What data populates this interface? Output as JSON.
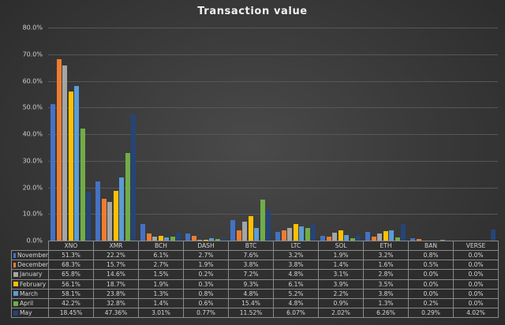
{
  "chart_data": {
    "type": "bar",
    "title": "Transaction value",
    "xlabel": "",
    "ylabel": "",
    "ylim": [
      0,
      80
    ],
    "y_ticks": [
      "0.0%",
      "10.0%",
      "20.0%",
      "30.0%",
      "40.0%",
      "50.0%",
      "60.0%",
      "70.0%",
      "80.0%"
    ],
    "grid": true,
    "legend_position": "data-table",
    "categories": [
      "XNO",
      "XMR",
      "BCH",
      "DASH",
      "BTC",
      "LTC",
      "SOL",
      "ETH",
      "BAN",
      "VERSE"
    ],
    "series": [
      {
        "name": "November",
        "color": "#4472c4",
        "values": [
          51.3,
          22.2,
          6.1,
          2.7,
          7.6,
          3.2,
          1.9,
          3.2,
          0.8,
          0.0
        ],
        "labels": [
          "51.3%",
          "22.2%",
          "6.1%",
          "2.7%",
          "7.6%",
          "3.2%",
          "1.9%",
          "3.2%",
          "0.8%",
          "0.0%"
        ]
      },
      {
        "name": "December",
        "color": "#ed7d31",
        "values": [
          68.3,
          15.7,
          2.7,
          1.9,
          3.8,
          3.8,
          1.4,
          1.6,
          0.5,
          0.0
        ],
        "labels": [
          "68.3%",
          "15.7%",
          "2.7%",
          "1.9%",
          "3.8%",
          "3.8%",
          "1.4%",
          "1.6%",
          "0.5%",
          "0.0%"
        ]
      },
      {
        "name": "January",
        "color": "#a5a5a5",
        "values": [
          65.8,
          14.6,
          1.5,
          0.2,
          7.2,
          4.8,
          3.1,
          2.8,
          0.0,
          0.0
        ],
        "labels": [
          "65.8%",
          "14.6%",
          "1.5%",
          "0.2%",
          "7.2%",
          "4.8%",
          "3.1%",
          "2.8%",
          "0.0%",
          "0.0%"
        ]
      },
      {
        "name": "February",
        "color": "#ffc000",
        "values": [
          56.1,
          18.7,
          1.9,
          0.3,
          9.3,
          6.1,
          3.9,
          3.5,
          0.0,
          0.0
        ],
        "labels": [
          "56.1%",
          "18.7%",
          "1.9%",
          "0.3%",
          "9.3%",
          "6.1%",
          "3.9%",
          "3.5%",
          "0.0%",
          "0.0%"
        ]
      },
      {
        "name": "March",
        "color": "#5b9bd5",
        "values": [
          58.1,
          23.8,
          1.3,
          0.8,
          4.8,
          5.2,
          2.2,
          3.8,
          0.0,
          0.0
        ],
        "labels": [
          "58.1%",
          "23.8%",
          "1.3%",
          "0.8%",
          "4.8%",
          "5.2%",
          "2.2%",
          "3.8%",
          "0.0%",
          "0.0%"
        ]
      },
      {
        "name": "April",
        "color": "#70ad47",
        "values": [
          42.2,
          32.8,
          1.4,
          0.6,
          15.4,
          4.8,
          0.9,
          1.3,
          0.2,
          0.0
        ],
        "labels": [
          "42.2%",
          "32.8%",
          "1.4%",
          "0.6%",
          "15.4%",
          "4.8%",
          "0.9%",
          "1.3%",
          "0.2%",
          "0.0%"
        ]
      },
      {
        "name": "May",
        "color": "#264478",
        "values": [
          18.45,
          47.36,
          3.01,
          0.77,
          11.52,
          6.07,
          2.02,
          6.26,
          0.29,
          4.02
        ],
        "labels": [
          "18.45%",
          "47.36%",
          "3.01%",
          "0.77%",
          "11.52%",
          "6.07%",
          "2.02%",
          "6.26%",
          "0.29%",
          "4.02%"
        ]
      }
    ]
  }
}
